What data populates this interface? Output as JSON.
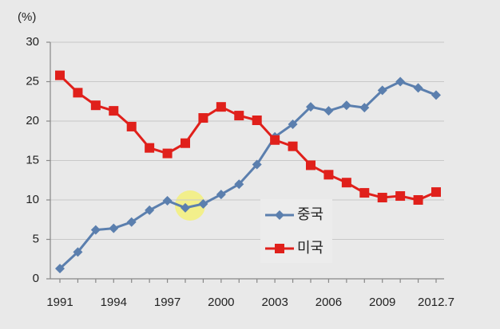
{
  "chart_data": {
    "type": "line",
    "y_label": "(%)",
    "categories": [
      "1991",
      null,
      null,
      "1994",
      null,
      null,
      "1997",
      null,
      null,
      "2000",
      null,
      null,
      "2003",
      null,
      null,
      "2006",
      null,
      null,
      "2009",
      null,
      null,
      "2012.7"
    ],
    "series": [
      {
        "name": "중국",
        "color": "#5b7fae",
        "marker": "diamond",
        "values": [
          1.3,
          3.4,
          6.2,
          6.4,
          7.2,
          8.7,
          9.9,
          9.0,
          9.5,
          10.7,
          12.0,
          14.5,
          18.0,
          19.6,
          21.8,
          21.3,
          22.0,
          21.7,
          23.9,
          25.0,
          24.2,
          23.3
        ]
      },
      {
        "name": "미국",
        "color": "#e0201b",
        "marker": "square",
        "values": [
          25.8,
          23.6,
          22.0,
          21.3,
          19.3,
          16.6,
          15.9,
          17.2,
          20.4,
          21.8,
          20.7,
          20.1,
          17.6,
          16.8,
          14.4,
          13.2,
          12.2,
          10.9,
          10.3,
          10.5,
          10.0,
          11.0
        ]
      }
    ],
    "ylim": [
      0,
      30
    ],
    "yticks": [
      0,
      5,
      10,
      15,
      20,
      25,
      30
    ],
    "grid": true
  }
}
